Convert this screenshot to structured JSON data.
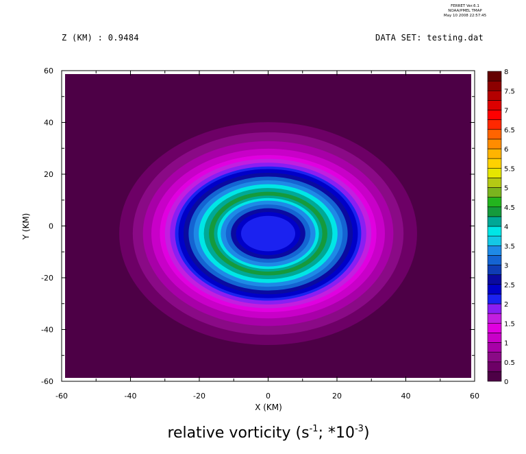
{
  "header": {
    "z_level": "Z (KM) : 0.9484",
    "dataset": "DATA SET: testing.dat",
    "stamp_lines": [
      "FERRET  Ver.6.1",
      "NOAA/PMEL TMAP",
      "May 10 2008 22:57:45"
    ]
  },
  "chart_data": {
    "type": "heatmap",
    "subtype": "filled-contour",
    "title": {
      "text": "relative vorticity (s",
      "exp1": "-1",
      "mid": "; *10",
      "exp2": "-3",
      "end": ")"
    },
    "xlabel": "X (KM)",
    "ylabel": "Y (KM)",
    "xlim": [
      -60,
      60
    ],
    "ylim": [
      -60,
      60
    ],
    "xticks": [
      "-60",
      "-40",
      "-20",
      "0",
      "20",
      "40",
      "60"
    ],
    "yticks": [
      "60",
      "40",
      "20",
      "0",
      "-20",
      "-40",
      "-60"
    ],
    "xtick_values": [
      -60,
      -40,
      -20,
      0,
      20,
      40,
      60
    ],
    "ytick_values": [
      60,
      40,
      20,
      0,
      -20,
      -40,
      -60
    ],
    "colorbar": {
      "labels": [
        "8",
        "7.5",
        "7",
        "6.5",
        "6",
        "5.5",
        "5",
        "4.5",
        "4",
        "3.5",
        "3",
        "2.5",
        "2",
        "1.5",
        "1",
        "0.5",
        "0"
      ],
      "colors": [
        "#4d0046",
        "#6d0066",
        "#8a0a86",
        "#a800a8",
        "#c800c8",
        "#e000e0",
        "#c21ee0",
        "#8a1ef2",
        "#1b22f0",
        "#0000c8",
        "#0a0aa0",
        "#0f3cb4",
        "#1464d2",
        "#1e8ae6",
        "#14c8e6",
        "#00e6e6",
        "#00a896",
        "#159a3c",
        "#23b41e",
        "#7ab41e",
        "#b4c814",
        "#e6e600",
        "#ffd200",
        "#ffb400",
        "#ff8c00",
        "#ff6400",
        "#ff2800",
        "#ff0000",
        "#dc0000",
        "#b40000",
        "#8c0000",
        "#640000"
      ]
    },
    "field_rings": [
      {
        "level": 0.0,
        "color": "#4d0046"
      },
      {
        "level": 0.25,
        "color": "#6d0066"
      },
      {
        "level": 0.5,
        "color": "#8a0a86"
      },
      {
        "level": 0.75,
        "color": "#a800a8"
      },
      {
        "level": 1.0,
        "color": "#c800c8"
      },
      {
        "level": 1.25,
        "color": "#e000e0"
      },
      {
        "level": 1.5,
        "color": "#c21ee0"
      },
      {
        "level": 1.75,
        "color": "#8a1ef2"
      },
      {
        "level": 2.0,
        "color": "#1b22f0"
      },
      {
        "level": 2.25,
        "color": "#0000c8"
      },
      {
        "level": 2.5,
        "color": "#0a0aa0"
      },
      {
        "level": 3.0,
        "color": "#1464d2"
      },
      {
        "level": 3.5,
        "color": "#1e8ae6"
      },
      {
        "level": 4.0,
        "color": "#00e6e6"
      },
      {
        "level": 4.25,
        "color": "#00a896"
      },
      {
        "level": 4.5,
        "color": "#159a3c"
      },
      {
        "level": 4.25,
        "color": "#00a896"
      },
      {
        "level": 4.0,
        "color": "#00e6e6"
      },
      {
        "level": 3.5,
        "color": "#1e8ae6"
      },
      {
        "level": 3.0,
        "color": "#1464d2"
      },
      {
        "level": 2.5,
        "color": "#0a0aa0"
      },
      {
        "level": 2.25,
        "color": "#0000c8"
      },
      {
        "level": 2.0,
        "color": "#1b22f0"
      }
    ]
  }
}
